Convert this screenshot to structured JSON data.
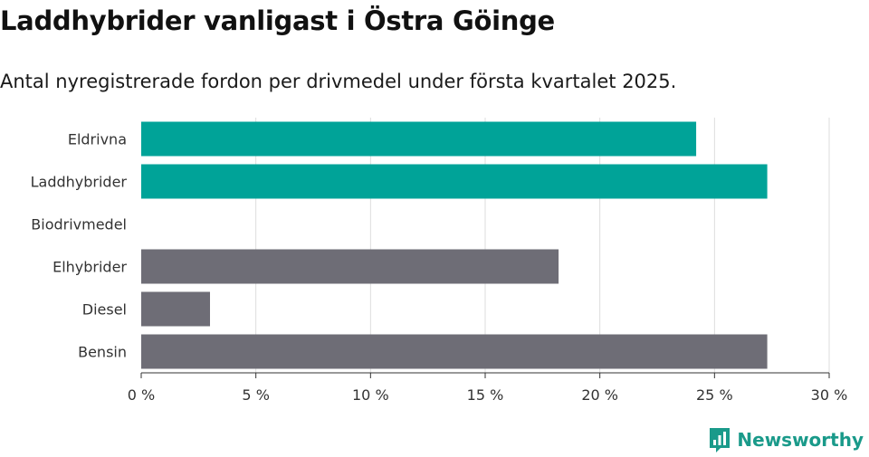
{
  "title": "Laddhybrider vanligast i Östra Göinge",
  "subtitle": "Antal nyregistrerade fordon per drivmedel under första kvartalet 2025.",
  "brand": {
    "name": "Newsworthy",
    "icon": "newsworthy-logo-icon",
    "color": "#1a9a8a"
  },
  "colors": {
    "highlight": "#00a398",
    "default": "#6e6d76",
    "grid": "#dddddd",
    "axis": "#333333"
  },
  "chart_data": {
    "type": "bar",
    "orientation": "horizontal",
    "categories": [
      "Eldrivna",
      "Laddhybrider",
      "Biodrivmedel",
      "Elhybrider",
      "Diesel",
      "Bensin"
    ],
    "values": [
      24.2,
      27.3,
      0,
      18.2,
      3.0,
      27.3
    ],
    "highlighted": [
      true,
      true,
      false,
      false,
      false,
      false
    ],
    "x_ticks": [
      "0 %",
      "5 %",
      "10 %",
      "15 %",
      "20 %",
      "25 %",
      "30 %"
    ],
    "xlim": [
      0,
      30
    ],
    "grid": true
  }
}
